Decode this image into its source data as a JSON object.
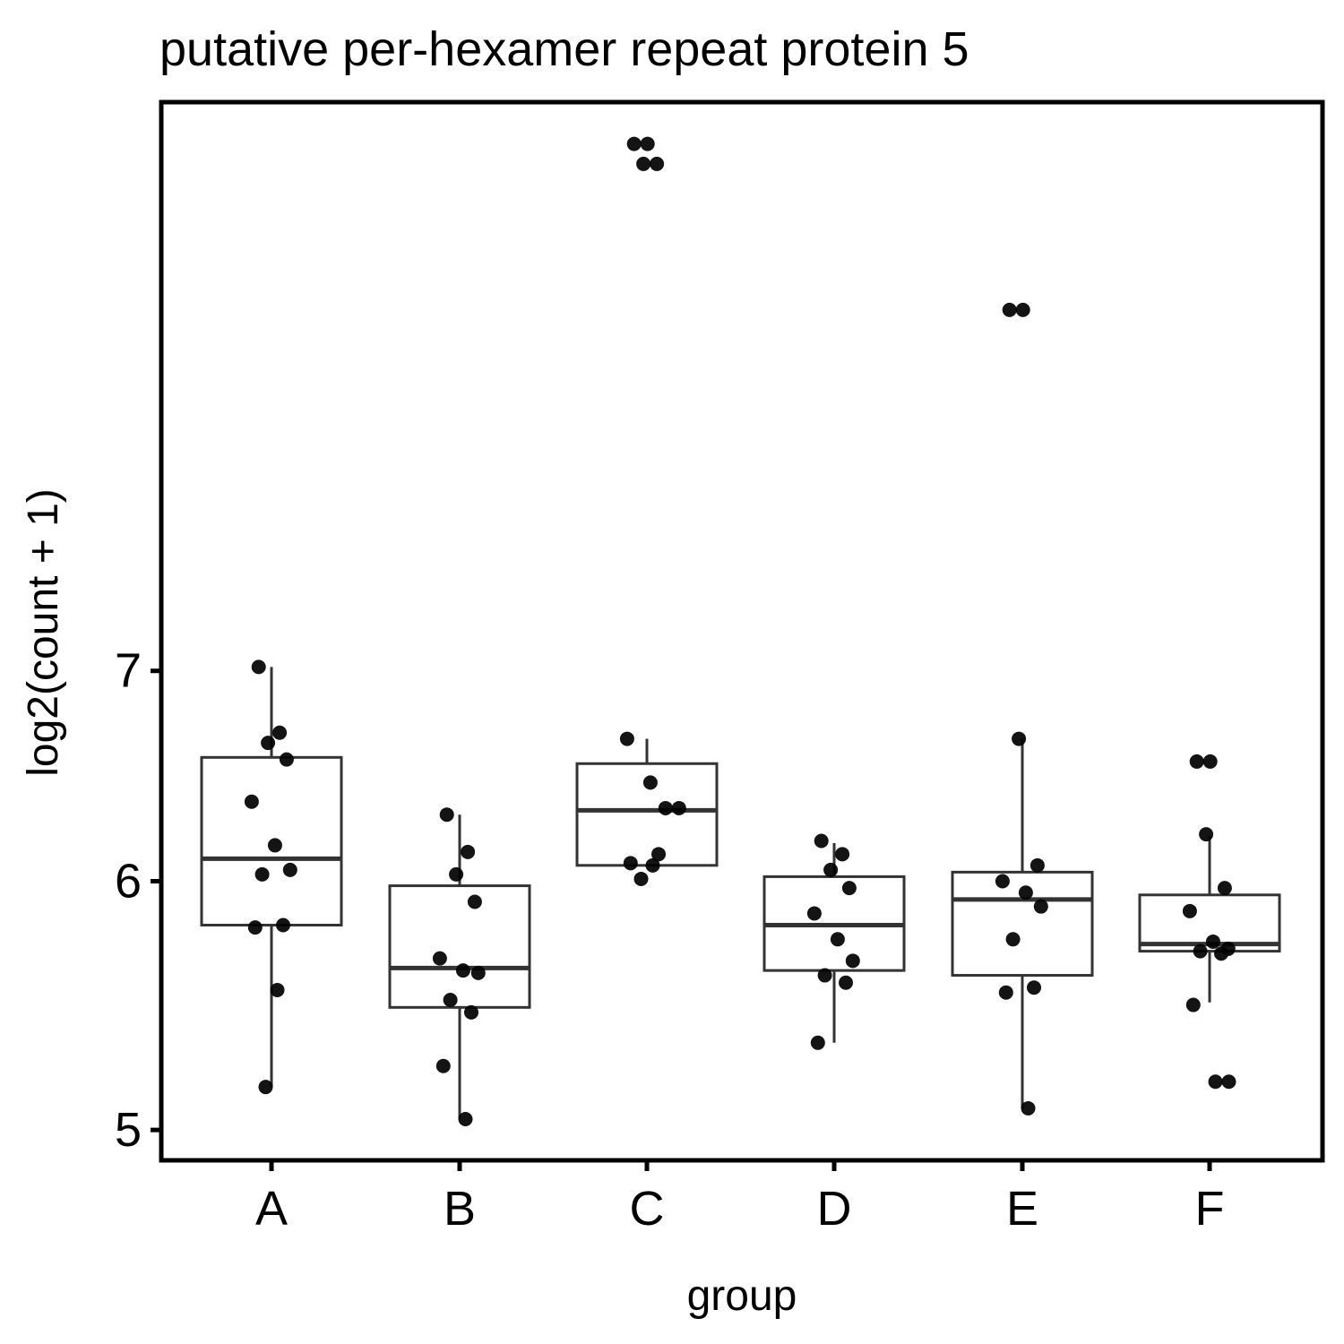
{
  "chart_data": {
    "type": "box",
    "title": "putative per-hexamer repeat protein 5",
    "xlabel": "group",
    "ylabel": "log2(count + 1)",
    "categories": [
      "A",
      "B",
      "C",
      "D",
      "E",
      "F"
    ],
    "yscale": "log",
    "yticks": [
      5,
      6,
      7
    ],
    "ylim": [
      4.89,
      10.62
    ],
    "grid": false,
    "legend": "none",
    "boxes": [
      {
        "group": "A",
        "q1": 5.81,
        "median": 6.1,
        "q3": 6.57,
        "whisker_low": 5.16,
        "whisker_high": 7.02
      },
      {
        "group": "B",
        "q1": 5.47,
        "median": 5.63,
        "q3": 5.98,
        "whisker_low": 5.04,
        "whisker_high": 6.3
      },
      {
        "group": "C",
        "q1": 6.07,
        "median": 6.32,
        "q3": 6.54,
        "whisker_low": 6.07,
        "whisker_high": 6.66
      },
      {
        "group": "D",
        "q1": 5.62,
        "median": 5.81,
        "q3": 6.02,
        "whisker_low": 5.33,
        "whisker_high": 6.17
      },
      {
        "group": "E",
        "q1": 5.6,
        "median": 5.92,
        "q3": 6.04,
        "whisker_low": 5.08,
        "whisker_high": 6.66
      },
      {
        "group": "F",
        "q1": 5.7,
        "median": 5.73,
        "q3": 5.94,
        "whisker_low": 5.49,
        "whisker_high": 6.2
      }
    ],
    "points": [
      {
        "group": "A",
        "values": [
          7.02,
          6.69,
          6.64,
          6.56,
          6.36,
          6.16,
          6.05,
          6.03,
          5.81,
          5.8,
          5.54,
          5.16
        ]
      },
      {
        "group": "B",
        "values": [
          6.3,
          6.13,
          6.03,
          5.91,
          5.67,
          5.62,
          5.61,
          5.5,
          5.45,
          5.24,
          5.04
        ]
      },
      {
        "group": "C",
        "values": [
          10.3,
          10.3,
          10.15,
          10.15,
          6.66,
          6.45,
          6.33,
          6.33,
          6.12,
          6.08,
          6.07,
          6.01
        ]
      },
      {
        "group": "D",
        "values": [
          6.18,
          6.12,
          6.05,
          5.97,
          5.86,
          5.75,
          5.66,
          5.6,
          5.57,
          5.33
        ]
      },
      {
        "group": "E",
        "values": [
          9.12,
          9.12,
          6.66,
          6.07,
          6.0,
          5.95,
          5.89,
          5.75,
          5.55,
          5.53,
          5.08
        ]
      },
      {
        "group": "F",
        "values": [
          6.55,
          6.55,
          6.21,
          5.97,
          5.87,
          5.74,
          5.71,
          5.7,
          5.69,
          5.48,
          5.18,
          5.18
        ]
      }
    ]
  }
}
